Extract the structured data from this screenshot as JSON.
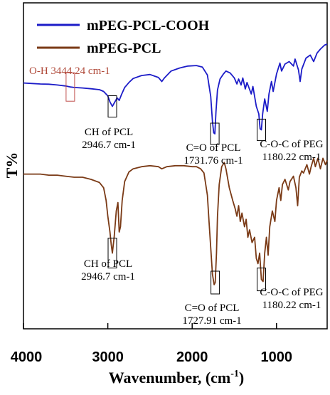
{
  "chart_data": {
    "type": "line",
    "xlabel_main": "Wavenumber, (cm",
    "xlabel_sup": "-1",
    "xlabel_tail": ")",
    "ylabel": "T%",
    "xlim": [
      4000,
      400
    ],
    "x_reversed": true,
    "x_ticks": [
      4000,
      3000,
      2000,
      1000
    ],
    "x_tick_labels": [
      "4000",
      "3000",
      "2000",
      "1000"
    ],
    "legend_position": "top-left",
    "series": [
      {
        "name": "mPEG-PCL-COOH",
        "color": "#1c1cc8",
        "level": "upper",
        "points": [
          [
            4000,
            0.02
          ],
          [
            3900,
            0.01
          ],
          [
            3800,
            0.0
          ],
          [
            3700,
            -0.005
          ],
          [
            3600,
            -0.02
          ],
          [
            3500,
            -0.04
          ],
          [
            3444,
            -0.06
          ],
          [
            3400,
            -0.07
          ],
          [
            3300,
            -0.08
          ],
          [
            3200,
            -0.095
          ],
          [
            3100,
            -0.115
          ],
          [
            3050,
            -0.15
          ],
          [
            3000,
            -0.24
          ],
          [
            2975,
            -0.36
          ],
          [
            2946,
            -0.45
          ],
          [
            2920,
            -0.37
          ],
          [
            2890,
            -0.28
          ],
          [
            2865,
            -0.33
          ],
          [
            2840,
            -0.22
          ],
          [
            2800,
            -0.07
          ],
          [
            2750,
            0.03
          ],
          [
            2700,
            0.11
          ],
          [
            2600,
            0.17
          ],
          [
            2500,
            0.19
          ],
          [
            2400,
            0.13
          ],
          [
            2360,
            0.05
          ],
          [
            2330,
            0.12
          ],
          [
            2250,
            0.26
          ],
          [
            2150,
            0.32
          ],
          [
            2050,
            0.36
          ],
          [
            1950,
            0.37
          ],
          [
            1880,
            0.34
          ],
          [
            1820,
            0.18
          ],
          [
            1780,
            -0.25
          ],
          [
            1760,
            -0.75
          ],
          [
            1745,
            -0.98
          ],
          [
            1731,
            -1.0
          ],
          [
            1718,
            -0.55
          ],
          [
            1700,
            -0.12
          ],
          [
            1670,
            0.1
          ],
          [
            1630,
            0.2
          ],
          [
            1600,
            0.26
          ],
          [
            1550,
            0.22
          ],
          [
            1500,
            0.12
          ],
          [
            1470,
            0.0
          ],
          [
            1450,
            0.1
          ],
          [
            1420,
            -0.02
          ],
          [
            1400,
            0.12
          ],
          [
            1370,
            -0.1
          ],
          [
            1350,
            0.03
          ],
          [
            1300,
            -0.2
          ],
          [
            1280,
            -0.05
          ],
          [
            1240,
            -0.45
          ],
          [
            1210,
            -0.6
          ],
          [
            1195,
            -0.9
          ],
          [
            1180,
            -0.92
          ],
          [
            1165,
            -0.6
          ],
          [
            1140,
            -0.3
          ],
          [
            1110,
            -0.55
          ],
          [
            1090,
            -0.2
          ],
          [
            1060,
            0.05
          ],
          [
            1040,
            -0.15
          ],
          [
            1000,
            0.2
          ],
          [
            960,
            0.42
          ],
          [
            940,
            0.26
          ],
          [
            900,
            0.4
          ],
          [
            850,
            0.45
          ],
          [
            800,
            0.36
          ],
          [
            780,
            0.5
          ],
          [
            740,
            0.28
          ],
          [
            720,
            0.05
          ],
          [
            700,
            0.3
          ],
          [
            650,
            0.52
          ],
          [
            600,
            0.58
          ],
          [
            560,
            0.45
          ],
          [
            520,
            0.62
          ],
          [
            480,
            0.7
          ],
          [
            430,
            0.78
          ],
          [
            400,
            0.8
          ]
        ]
      },
      {
        "name": "mPEG-PCL",
        "color": "#7a3a16",
        "level": "lower",
        "points": [
          [
            4000,
            0.05
          ],
          [
            3900,
            0.05
          ],
          [
            3800,
            0.05
          ],
          [
            3700,
            0.04
          ],
          [
            3600,
            0.04
          ],
          [
            3500,
            0.03
          ],
          [
            3400,
            0.02
          ],
          [
            3300,
            0.02
          ],
          [
            3200,
            0.0
          ],
          [
            3100,
            -0.03
          ],
          [
            3050,
            -0.08
          ],
          [
            3020,
            -0.2
          ],
          [
            3000,
            -0.35
          ],
          [
            2975,
            -0.5
          ],
          [
            2960,
            -0.62
          ],
          [
            2946,
            -0.7
          ],
          [
            2925,
            -0.55
          ],
          [
            2900,
            -0.3
          ],
          [
            2880,
            -0.22
          ],
          [
            2865,
            -0.5
          ],
          [
            2850,
            -0.45
          ],
          [
            2830,
            -0.2
          ],
          [
            2800,
            -0.02
          ],
          [
            2750,
            0.07
          ],
          [
            2700,
            0.1
          ],
          [
            2600,
            0.12
          ],
          [
            2500,
            0.13
          ],
          [
            2400,
            0.12
          ],
          [
            2360,
            0.1
          ],
          [
            2300,
            0.12
          ],
          [
            2200,
            0.13
          ],
          [
            2100,
            0.13
          ],
          [
            2000,
            0.12
          ],
          [
            1950,
            0.12
          ],
          [
            1900,
            0.1
          ],
          [
            1860,
            0.06
          ],
          [
            1820,
            -0.15
          ],
          [
            1800,
            -0.4
          ],
          [
            1780,
            -0.65
          ],
          [
            1760,
            -0.9
          ],
          [
            1740,
            -1.0
          ],
          [
            1727,
            -0.98
          ],
          [
            1712,
            -0.7
          ],
          [
            1700,
            -0.35
          ],
          [
            1680,
            -0.05
          ],
          [
            1650,
            0.12
          ],
          [
            1620,
            0.16
          ],
          [
            1600,
            0.1
          ],
          [
            1560,
            -0.08
          ],
          [
            1520,
            -0.2
          ],
          [
            1490,
            -0.28
          ],
          [
            1470,
            -0.35
          ],
          [
            1450,
            -0.25
          ],
          [
            1430,
            -0.4
          ],
          [
            1410,
            -0.32
          ],
          [
            1380,
            -0.45
          ],
          [
            1360,
            -0.38
          ],
          [
            1340,
            -0.55
          ],
          [
            1320,
            -0.48
          ],
          [
            1290,
            -0.6
          ],
          [
            1260,
            -0.55
          ],
          [
            1240,
            -0.75
          ],
          [
            1220,
            -0.8
          ],
          [
            1200,
            -0.7
          ],
          [
            1180,
            -0.95
          ],
          [
            1160,
            -0.97
          ],
          [
            1140,
            -0.7
          ],
          [
            1120,
            -0.55
          ],
          [
            1100,
            -0.72
          ],
          [
            1080,
            -0.45
          ],
          [
            1050,
            -0.3
          ],
          [
            1020,
            -0.4
          ],
          [
            1000,
            -0.2
          ],
          [
            970,
            -0.08
          ],
          [
            950,
            -0.2
          ],
          [
            930,
            -0.05
          ],
          [
            900,
            0.0
          ],
          [
            860,
            -0.1
          ],
          [
            840,
            -0.02
          ],
          [
            800,
            0.03
          ],
          [
            770,
            -0.08
          ],
          [
            750,
            -0.25
          ],
          [
            730,
            0.02
          ],
          [
            700,
            0.08
          ],
          [
            680,
            0.06
          ],
          [
            640,
            0.14
          ],
          [
            610,
            0.05
          ],
          [
            590,
            0.12
          ],
          [
            560,
            0.2
          ],
          [
            540,
            0.12
          ],
          [
            510,
            0.2
          ],
          [
            480,
            0.1
          ],
          [
            450,
            0.2
          ],
          [
            420,
            0.14
          ],
          [
            400,
            0.18
          ]
        ]
      }
    ],
    "annotations": [
      {
        "id": "oh",
        "text": "O-H 3444.24 cm-1",
        "box_x": 3444,
        "series": "mPEG-PCL-COOH",
        "red": true
      },
      {
        "id": "ch-top",
        "text_lines": [
          "CH of PCL",
          "2946.7 cm-1"
        ],
        "box_x": 2946,
        "series": "mPEG-PCL-COOH"
      },
      {
        "id": "co-top",
        "text_lines": [
          "C=O of PCL",
          "1731.76 cm-1"
        ],
        "box_x": 1731,
        "series": "mPEG-PCL-COOH"
      },
      {
        "id": "coc-top",
        "text_lines": [
          "C-O-C of PEG",
          "1180.22 cm-1"
        ],
        "box_x": 1180,
        "series": "mPEG-PCL-COOH"
      },
      {
        "id": "ch-bot",
        "text_lines": [
          "CH of PCL",
          "2946.7 cm-1"
        ],
        "box_x": 2946,
        "series": "mPEG-PCL"
      },
      {
        "id": "co-bot",
        "text_lines": [
          "C=O of PCL",
          "1727.91 cm-1"
        ],
        "box_x": 1727,
        "series": "mPEG-PCL"
      },
      {
        "id": "coc-bot",
        "text_lines": [
          "C-O-C of PEG",
          "1180.22 cm-1"
        ],
        "box_x": 1180,
        "series": "mPEG-PCL"
      }
    ]
  }
}
